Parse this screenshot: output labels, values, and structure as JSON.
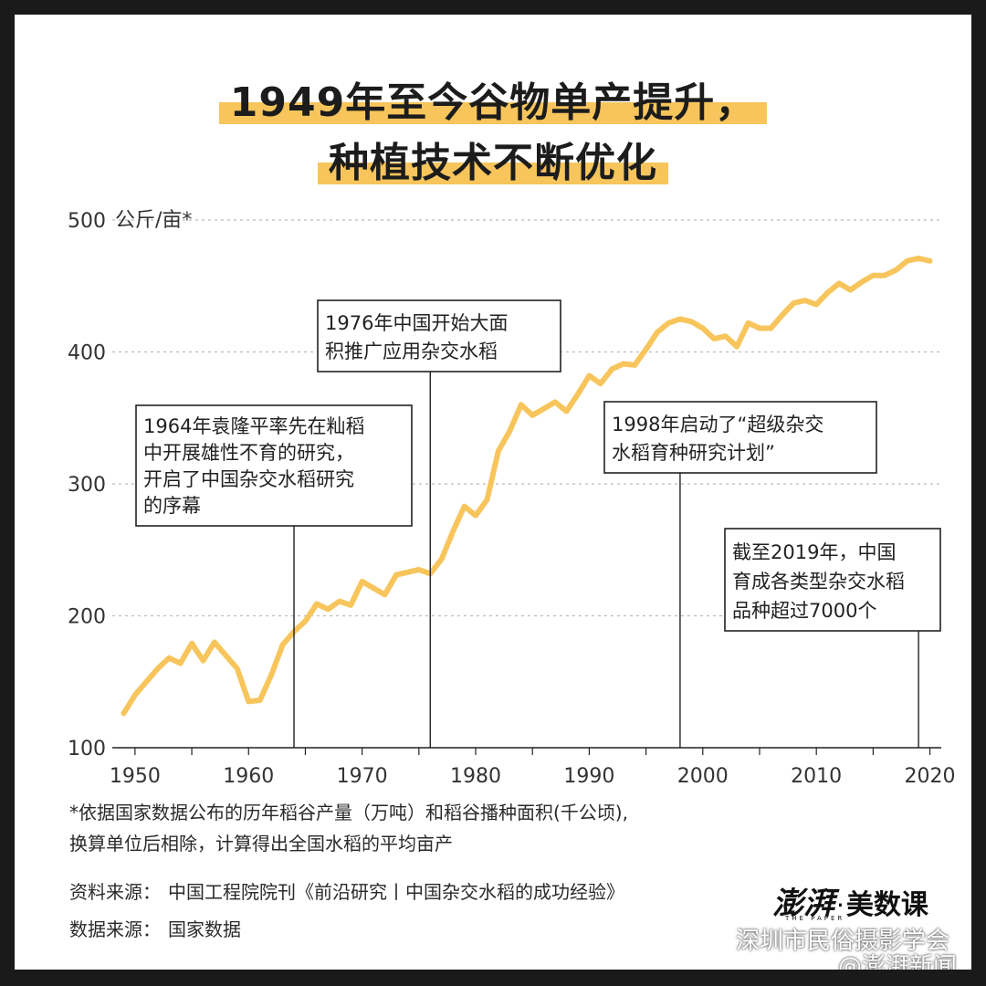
{
  "title_line1": "1949年至今谷物单产提升，",
  "title_line2": "种植技术不断优化",
  "unit_label": "公斤/亩*",
  "annotations": [
    {
      "year": 1964,
      "lines": [
        "1964年袁隆平率先在籼稻",
        "中开展雄性不育的研究，",
        "开启了中国杂交水稻研究",
        "的序幕"
      ]
    },
    {
      "year": 1976,
      "lines": [
        "1976年中国开始大面",
        "积推广应用杂交水稻"
      ]
    },
    {
      "year": 1998,
      "lines": [
        "1998年启动了“超级杂交",
        "水稻育种研究计划”"
      ]
    },
    {
      "year": 2019,
      "lines": [
        "截至2019年，中国",
        "育成各类型杂交水稻",
        "品种超过7000个"
      ]
    }
  ],
  "footnote_line1": "*依据国家数据公布的历年稻谷产量（万吨）和稻谷播种面积(千公顷),",
  "footnote_line2": "换算单位后相除，计算得出全国水稻的平均亩产",
  "source1_label": "资料来源：",
  "source1_value": "中国工程院院刊《前沿研究丨中国杂交水稻的成功经验》",
  "source2_label": "数据来源：",
  "source2_value": "国家数据",
  "logo": {
    "brand": "澎湃",
    "tiny": "THE PAPER",
    "dot": "·",
    "sub": "美数课"
  },
  "watermark1": "深圳市民俗摄影学会",
  "watermark2": "@澎湃新闻",
  "colors": {
    "line": "#f7c55c",
    "highlight": "#f7c55c",
    "text": "#1c1c1c"
  },
  "chart_data": {
    "type": "line",
    "title": "1949年至今谷物单产提升，种植技术不断优化",
    "ylabel": "公斤/亩*",
    "xlabel": "",
    "ylim": [
      100,
      500
    ],
    "xlim": [
      1948,
      2021
    ],
    "yticks": [
      100,
      200,
      300,
      400,
      500
    ],
    "xticks": [
      1950,
      1960,
      1970,
      1980,
      1990,
      2000,
      2010,
      2020
    ],
    "grid": "horizontal-dotted",
    "x": [
      1949,
      1950,
      1951,
      1952,
      1953,
      1954,
      1955,
      1956,
      1957,
      1958,
      1959,
      1960,
      1961,
      1962,
      1963,
      1964,
      1965,
      1966,
      1967,
      1968,
      1969,
      1970,
      1971,
      1972,
      1973,
      1974,
      1975,
      1976,
      1977,
      1978,
      1979,
      1980,
      1981,
      1982,
      1983,
      1984,
      1985,
      1986,
      1987,
      1988,
      1989,
      1990,
      1991,
      1992,
      1993,
      1994,
      1995,
      1996,
      1997,
      1998,
      1999,
      2000,
      2001,
      2002,
      2003,
      2004,
      2005,
      2006,
      2007,
      2008,
      2009,
      2010,
      2011,
      2012,
      2013,
      2014,
      2015,
      2016,
      2017,
      2018,
      2019,
      2020
    ],
    "values": [
      126,
      140,
      150,
      160,
      168,
      164,
      179,
      166,
      180,
      170,
      160,
      135,
      136,
      155,
      178,
      188,
      196,
      209,
      205,
      211,
      208,
      226,
      221,
      216,
      231,
      233,
      235,
      232,
      243,
      264,
      283,
      276,
      288,
      325,
      340,
      360,
      352,
      357,
      362,
      355,
      368,
      382,
      376,
      387,
      391,
      390,
      402,
      415,
      422,
      425,
      423,
      418,
      410,
      412,
      404,
      422,
      418,
      418,
      428,
      437,
      439,
      436,
      445,
      452,
      447,
      453,
      458,
      458,
      462,
      469,
      471,
      469
    ]
  }
}
